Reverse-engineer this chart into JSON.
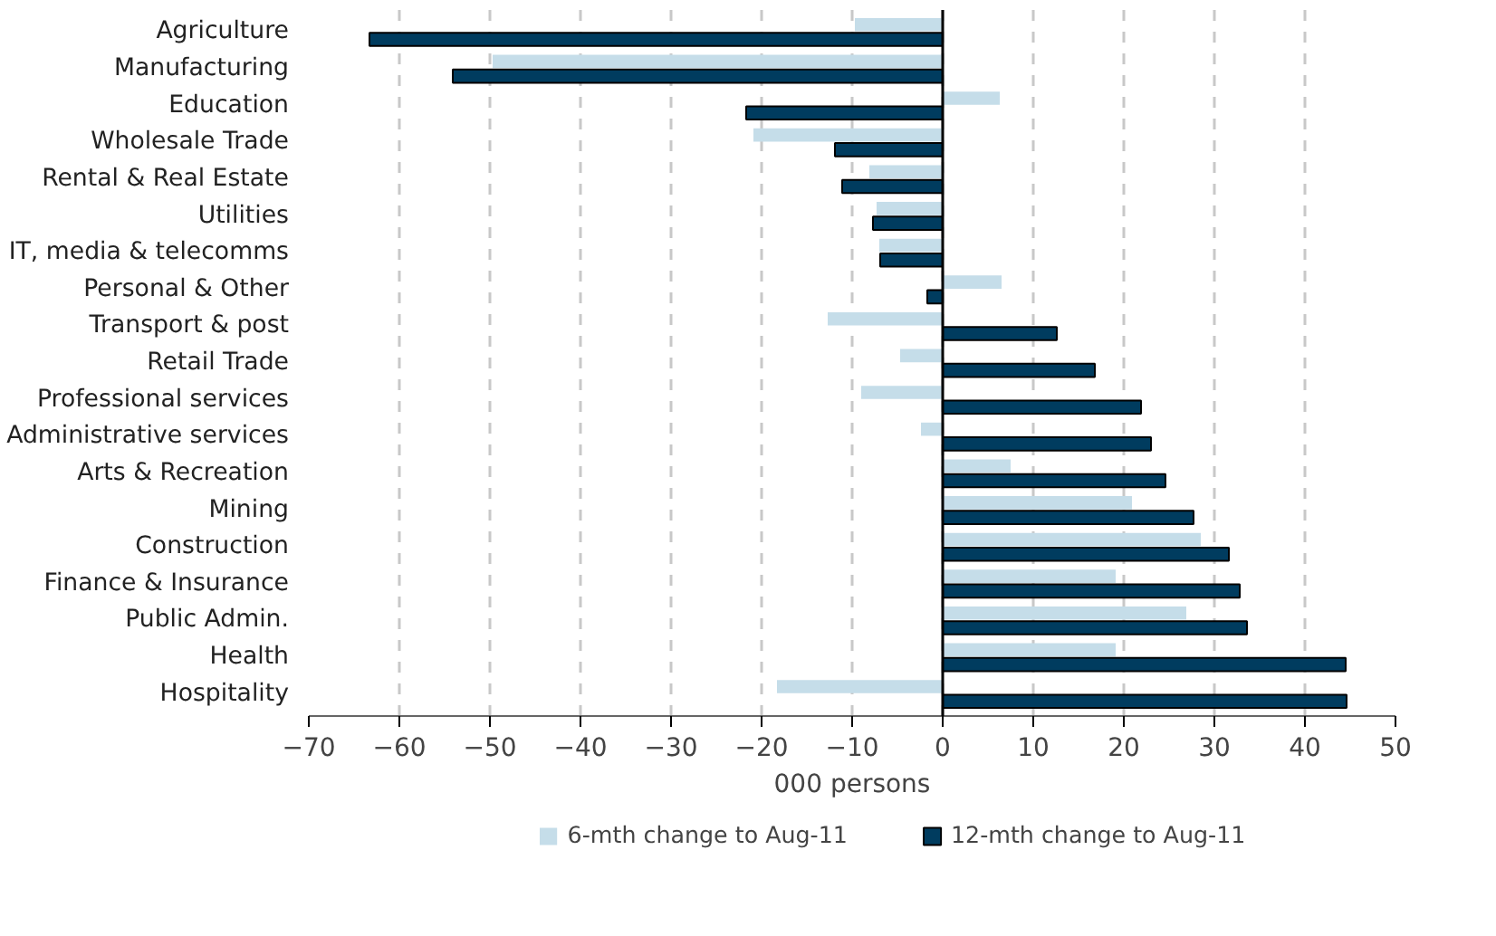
{
  "chart_data": {
    "type": "bar",
    "orientation": "horizontal",
    "xlabel": "000 persons",
    "categories": [
      "Agriculture",
      "Manufacturing",
      "Education",
      "Wholesale Trade",
      "Rental & Real Estate",
      "Utilities",
      "IT, media & telecomms",
      "Personal & Other",
      "Transport & post",
      "Retail Trade",
      "Professional services",
      "Administrative services",
      "Arts & Recreation",
      "Mining",
      "Construction",
      "Finance & Insurance",
      "Public Admin.",
      "Health",
      "Hospitality"
    ],
    "series": [
      {
        "name": "6-mth change to Aug-11",
        "color": "#c5dde9",
        "values": [
          -9.7,
          -49.7,
          6.3,
          -20.9,
          -8.1,
          -7.3,
          -7.0,
          6.5,
          -12.7,
          -4.7,
          -9.0,
          -2.4,
          7.5,
          20.9,
          28.5,
          19.1,
          26.9,
          19.1,
          -18.3
        ]
      },
      {
        "name": "12-mth change to Aug-11",
        "color": "#003c5f",
        "values": [
          -63.3,
          -54.1,
          -21.7,
          -11.9,
          -11.1,
          -7.7,
          -6.9,
          -1.7,
          12.6,
          16.8,
          21.9,
          23.0,
          24.6,
          27.7,
          31.6,
          32.8,
          33.6,
          44.5,
          44.6
        ]
      }
    ],
    "xlim": [
      -70,
      50
    ],
    "xticks": [
      -70,
      -60,
      -50,
      -40,
      -30,
      -20,
      -10,
      0,
      10,
      20,
      30,
      40,
      50
    ],
    "grid": "x",
    "legend": "bottom"
  }
}
